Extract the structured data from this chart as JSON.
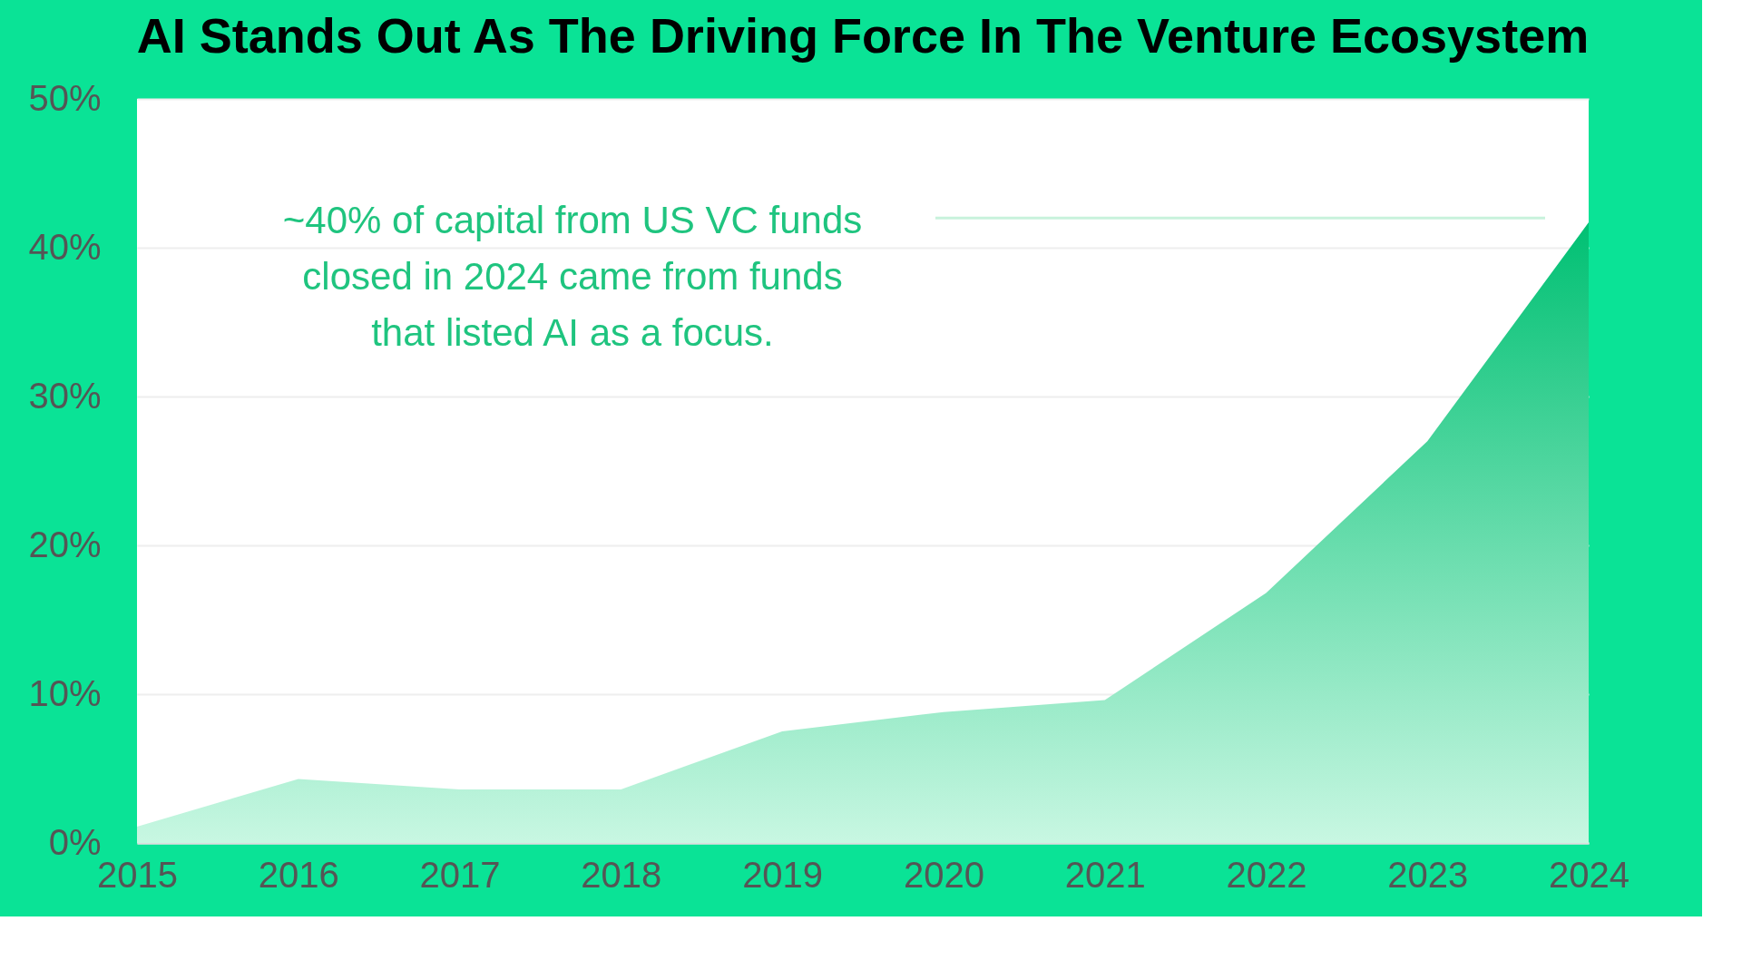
{
  "chart_data": {
    "type": "area",
    "title": "AI Stands Out As The Driving Force In The Venture Ecosystem",
    "x": [
      2015,
      2016,
      2017,
      2018,
      2019,
      2020,
      2021,
      2022,
      2023,
      2024
    ],
    "series": [
      {
        "color": "#00c073",
        "values": [
          1.1,
          4.3,
          3.6,
          3.6,
          7.5,
          8.8,
          9.6,
          16.8,
          27,
          41.7
        ]
      }
    ],
    "xlim": [
      2015,
      2024
    ],
    "xticks": [
      2015,
      2016,
      2017,
      2018,
      2019,
      2020,
      2021,
      2022,
      2023,
      2024
    ],
    "ylim": [
      0,
      50
    ],
    "yticks": [
      {
        "value": 0,
        "label": "0%"
      },
      {
        "value": 10,
        "label": "10%"
      },
      {
        "value": 20,
        "label": "20%"
      },
      {
        "value": 30,
        "label": "30%"
      },
      {
        "value": 40,
        "label": "40%"
      },
      {
        "value": 50,
        "label": "50%"
      }
    ],
    "grid": "y",
    "ref_lines": [
      {
        "axis": "y",
        "value": 42,
        "color": "#c8f2dc"
      }
    ],
    "annotations": [
      "~40% of capital from US VC funds closed in 2024 came from funds that listed AI as a focus."
    ]
  }
}
